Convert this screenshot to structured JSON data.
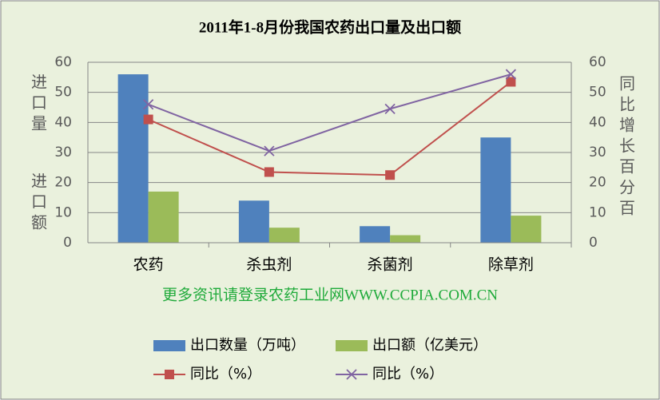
{
  "chart_data": {
    "type": "bar",
    "title": "2011年1-8月份我国农药出口量及出口额",
    "categories": [
      "农药",
      "杀虫剂",
      "杀菌剂",
      "除草剂"
    ],
    "series": [
      {
        "name": "出口数量（万吨）",
        "type": "bar",
        "color": "#4f81bd",
        "values": [
          56,
          14,
          5.5,
          35
        ]
      },
      {
        "name": "出口额（亿美元）",
        "type": "bar",
        "color": "#9bbb59",
        "values": [
          17,
          5,
          2.5,
          9
        ]
      },
      {
        "name": "同比（%）",
        "type": "line",
        "axis": "y2",
        "color": "#c0504d",
        "marker": "square",
        "values": [
          41,
          23.5,
          22.5,
          53.5
        ]
      },
      {
        "name": "同比（%）",
        "type": "line",
        "axis": "y2",
        "color": "#8064a2",
        "marker": "x",
        "values": [
          46,
          30.5,
          44.5,
          56
        ]
      }
    ],
    "ylabel": [
      "进口量",
      "进口额"
    ],
    "y2label": "同比增长百分百",
    "annotation": "更多资讯请登录农药工业网WWW.CCPIA.COM.CN",
    "ylim": [
      0,
      60
    ],
    "yticks": [
      0,
      10,
      20,
      30,
      40,
      50,
      60
    ],
    "y2lim": [
      0,
      60
    ],
    "y2ticks": [
      0,
      10,
      20,
      30,
      40,
      50,
      60
    ],
    "grid": true,
    "legend": "bottom"
  }
}
